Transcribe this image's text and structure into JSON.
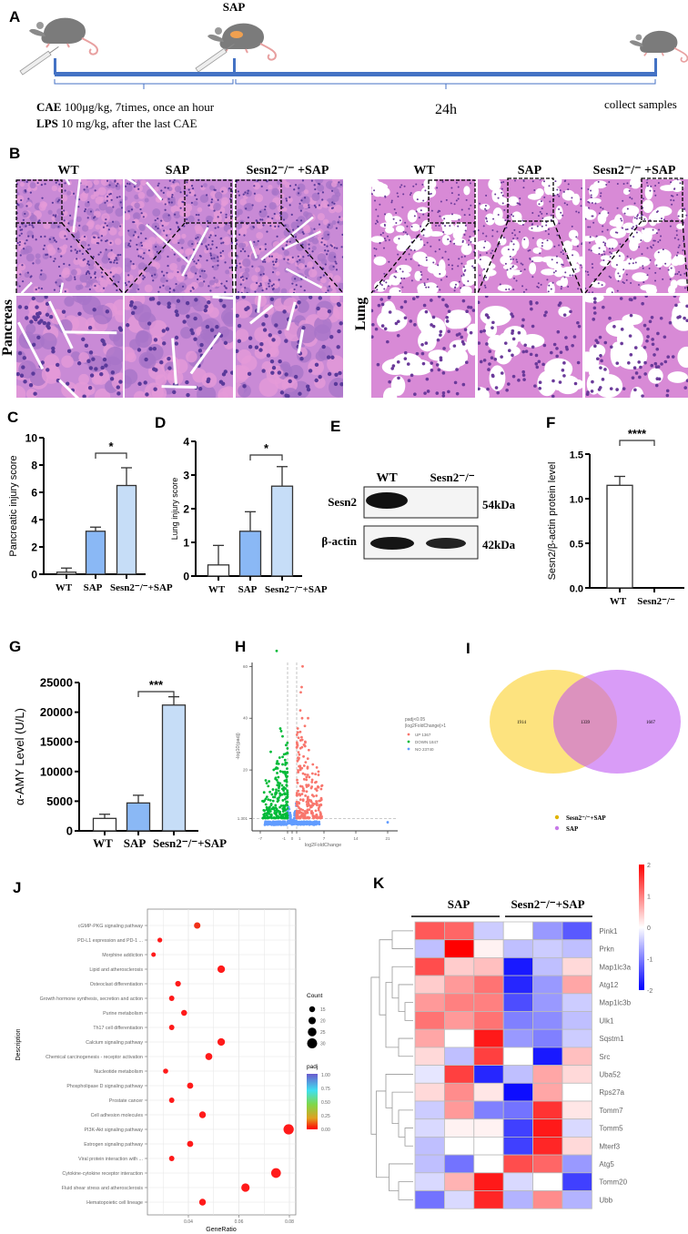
{
  "panel_labels": [
    "A",
    "B",
    "C",
    "D",
    "E",
    "F",
    "G",
    "H",
    "I",
    "J",
    "K"
  ],
  "timeline": {
    "sap_label": "SAP",
    "cae_bold": "CAE",
    "cae_text": " 100μg/kg, 7times, once an hour",
    "lps_bold": "LPS",
    "lps_text": " 10 mg/kg, after the last CAE",
    "duration": "24h",
    "end_label": "collect samples",
    "bar_color": "#4472c4"
  },
  "histology": {
    "groups": [
      "WT",
      "SAP",
      "Sesn2⁻/⁻ +SAP"
    ],
    "pancreas_label": "Pancreas",
    "lung_label": "Lung"
  },
  "western": {
    "lanes": [
      "WT",
      "Sesn2⁻/⁻"
    ],
    "bands": [
      {
        "name": "Sesn2",
        "size": "54kDa"
      },
      {
        "name": "β-actin",
        "size": "42kDa"
      }
    ]
  },
  "chart_data": [
    {
      "panel": "C",
      "type": "bar",
      "categories": [
        "WT",
        "SAP",
        "Sesn2⁻/⁻+SAP"
      ],
      "values": [
        0.15,
        3.15,
        6.5
      ],
      "errors": [
        0.3,
        0.3,
        1.3
      ],
      "ylabel": "Pancreatic injury score",
      "xlabel": "",
      "ylim": [
        0,
        10
      ],
      "yticks": [
        "0",
        "2",
        "4",
        "6",
        "8",
        "10"
      ],
      "significance": [
        {
          "between": [
            1,
            2
          ],
          "label": "*"
        }
      ],
      "bar_colors": [
        "#ffffff",
        "#8ab8f5",
        "#c6ddf7"
      ]
    },
    {
      "panel": "D",
      "type": "bar",
      "categories": [
        "WT",
        "SAP",
        "Sesn2⁻/⁻+SAP"
      ],
      "values": [
        0.33,
        1.33,
        2.67
      ],
      "errors": [
        0.58,
        0.58,
        0.58
      ],
      "ylabel": "Lung injury score",
      "xlabel": "",
      "ylim": [
        0,
        4
      ],
      "yticks": [
        "0",
        "1",
        "2",
        "3",
        "4"
      ],
      "significance": [
        {
          "between": [
            1,
            2
          ],
          "label": "*"
        }
      ],
      "bar_colors": [
        "#ffffff",
        "#8ab8f5",
        "#c6ddf7"
      ]
    },
    {
      "panel": "F",
      "type": "bar",
      "categories": [
        "WT",
        "Sesn2⁻/⁻"
      ],
      "values": [
        1.15,
        0
      ],
      "errors": [
        0.1,
        0
      ],
      "ylabel": "Sesn2/β-actin protein level",
      "xlabel": "",
      "ylim": [
        0,
        1.5
      ],
      "yticks": [
        "0.0",
        "0.5",
        "1.0",
        "1.5"
      ],
      "significance": [
        {
          "between": [
            0,
            1
          ],
          "label": "****"
        }
      ],
      "bar_colors": [
        "#ffffff",
        "#ffffff"
      ]
    },
    {
      "panel": "G",
      "type": "bar",
      "categories": [
        "WT",
        "SAP",
        "Sesn2⁻/⁻+SAP"
      ],
      "values": [
        2100,
        4700,
        21200
      ],
      "errors": [
        700,
        1300,
        1400
      ],
      "ylabel": "α-AMY Level (U/L)",
      "xlabel": "",
      "ylim": [
        0,
        25000
      ],
      "yticks": [
        "0",
        "5000",
        "10000",
        "15000",
        "20000",
        "25000"
      ],
      "significance": [
        {
          "between": [
            1,
            2
          ],
          "label": "***"
        }
      ],
      "bar_colors": [
        "#ffffff",
        "#8ab8f5",
        "#c6ddf7"
      ]
    },
    {
      "panel": "H",
      "type": "scatter",
      "xlabel": "log2FoldChange",
      "ylabel": "-log10(padj)",
      "xticks": [
        "-7",
        "-1",
        "0",
        "1",
        "7",
        "14",
        "21"
      ],
      "yticks": [
        "1.301",
        "20",
        "40",
        "60"
      ],
      "xlim": [
        -8.5,
        23
      ],
      "ylim": [
        -3,
        60
      ],
      "thresholds": {
        "log2fc": [
          -1,
          1
        ],
        "neg_log10_padj": 1.301
      },
      "legend_title": [
        "padj<0.05",
        "|log2FoldChange|>1"
      ],
      "legend_placement": "right",
      "series": [
        {
          "name": "UP 1367",
          "color": "#f8766d"
        },
        {
          "name": "DOWN 1847",
          "color": "#00ba38"
        },
        {
          "name": "NO 23740",
          "color": "#619cff"
        }
      ]
    },
    {
      "panel": "I",
      "type": "venn",
      "sets": [
        {
          "name": "Sesn2⁻/⁻+SAP",
          "only": "1914",
          "color": "#fde37f",
          "legend_color": "#e0b400"
        },
        {
          "name": "SAP",
          "only": "1667",
          "color": "#d99cf7",
          "legend_color": "#c77ae8"
        }
      ],
      "intersection": "1339",
      "overlap_color": "#dc92be"
    },
    {
      "panel": "J",
      "type": "scatter",
      "subtype": "dot",
      "xlabel": "GeneRatio",
      "ylabel": "Description",
      "xticks": [
        "0.04",
        "0.06",
        "0.08"
      ],
      "xlim": [
        0.024,
        0.083
      ],
      "categories": [
        "cGMP-PKG signaling pathway",
        "PD-L1 expression and PD-1 ...",
        "Morphine addiction",
        "Lipid and atherosclerosis",
        "Osteoclast differentiation",
        "Growth hormone synthesis, secretion and action",
        "Purine metabolism",
        "Th17 cell differentiation",
        "Calcium signaling pathway",
        "Chemical carcinogenesis - receptor activation",
        "Nucleotide metabolism",
        "Phospholipase D signaling pathway",
        "Prostate cancer",
        "Cell adhesion molecules",
        "PI3K-Akt signaling pathway",
        "Estrogen signaling pathway",
        "Viral protein interaction with ...",
        "Cytokine-cytokine receptor interaction",
        "Fluid shear stress and atherosclerosis",
        "Hematopoietic cell lineage"
      ],
      "gene_ratio": [
        0.0435,
        0.0287,
        0.0262,
        0.053,
        0.0359,
        0.0334,
        0.0383,
        0.0334,
        0.053,
        0.0481,
        0.031,
        0.0407,
        0.0334,
        0.0456,
        0.0797,
        0.0407,
        0.0334,
        0.0747,
        0.0626,
        0.0456
      ],
      "count": [
        17,
        11,
        10,
        21,
        14,
        13,
        15,
        13,
        21,
        19,
        12,
        16,
        13,
        18,
        31,
        16,
        13,
        29,
        24,
        18
      ],
      "padj": [
        0.02,
        0,
        0,
        0,
        0,
        0,
        0,
        0,
        0,
        0,
        0,
        0,
        0,
        0,
        0,
        0,
        0,
        0,
        0,
        0
      ],
      "count_legend": {
        "title": "Count",
        "values": [
          "15",
          "20",
          "25",
          "30"
        ]
      },
      "padj_legend": {
        "title": "padj",
        "ticks": [
          "1.00",
          "0.75",
          "0.50",
          "0.25",
          "0.00"
        ],
        "colors": [
          "#6a5acd",
          "#3fe0f0",
          "#7fd848",
          "#e0a020",
          "#ff0000"
        ]
      },
      "grid": true
    },
    {
      "panel": "K",
      "type": "heatmap",
      "column_groups": [
        "SAP",
        "Sesn2⁻/⁻+SAP"
      ],
      "rows": [
        "Pink1",
        "Prkn",
        "Map1lc3a",
        "Atg12",
        "Map1lc3b",
        "Ulk1",
        "Sqstm1",
        "Src",
        "Uba52",
        "Rps27a",
        "Tomm7",
        "Tomm5",
        "Mterf3",
        "Atg5",
        "Tomm20",
        "Ubb"
      ],
      "values": [
        [
          1.3,
          1.2,
          -0.4,
          0.0,
          -0.8,
          -1.3
        ],
        [
          -0.5,
          2.0,
          0.1,
          -0.5,
          -0.4,
          -0.5
        ],
        [
          1.4,
          0.4,
          0.5,
          -1.8,
          -0.5,
          0.3
        ],
        [
          0.4,
          0.8,
          1.1,
          -1.7,
          -0.8,
          0.7
        ],
        [
          0.8,
          1.0,
          1.0,
          -1.4,
          -0.8,
          -0.4
        ],
        [
          1.1,
          0.8,
          1.1,
          -1.0,
          -0.9,
          -0.5
        ],
        [
          0.7,
          0.0,
          1.8,
          -0.8,
          -1.0,
          -0.4
        ],
        [
          0.3,
          -0.5,
          1.5,
          0.0,
          -1.8,
          0.5
        ],
        [
          -0.2,
          1.5,
          -1.7,
          -0.5,
          0.7,
          0.3
        ],
        [
          0.3,
          0.9,
          0.2,
          -1.9,
          0.7,
          0.0
        ],
        [
          -0.4,
          0.8,
          -1.0,
          -1.1,
          1.6,
          0.2
        ],
        [
          -0.3,
          0.1,
          0.1,
          -1.5,
          1.8,
          -0.3
        ],
        [
          -0.5,
          0.0,
          0.0,
          -1.5,
          1.7,
          0.3
        ],
        [
          -0.5,
          -1.1,
          0.0,
          1.4,
          1.2,
          -0.8
        ],
        [
          -0.3,
          0.6,
          1.8,
          -0.3,
          0.0,
          -1.5
        ],
        [
          -1.1,
          -0.3,
          1.7,
          -0.6,
          0.9,
          -0.6
        ]
      ],
      "color_scale": {
        "min": -2,
        "max": 2,
        "low": "#0000ff",
        "mid": "#ffffff",
        "high": "#ff0000",
        "ticks": [
          "2",
          "1",
          "0",
          "-1",
          "-2"
        ]
      }
    }
  ]
}
